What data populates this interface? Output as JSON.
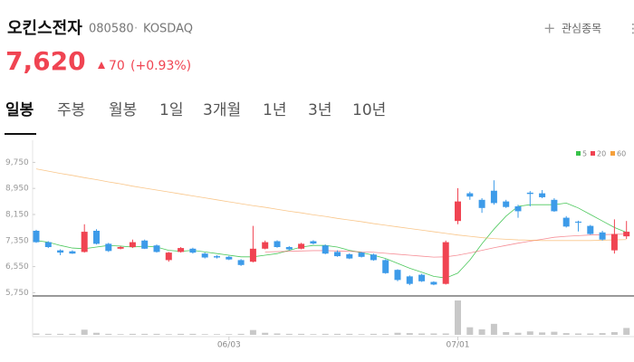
{
  "header": {
    "name": "오킨스전자",
    "code": "080580",
    "market": "KOSDAQ",
    "price": "7,620",
    "change": 70,
    "change_pct": "(+0.93%)",
    "watch": "관심종목"
  },
  "tabs": [
    "일봉",
    "주봉",
    "월봉",
    "1일",
    "3개월",
    "1년",
    "3년",
    "10년"
  ],
  "chart_data": {
    "type": "candlestick",
    "categories": [
      null,
      null,
      null,
      null,
      null,
      null,
      null,
      null,
      null,
      null,
      null,
      null,
      null,
      null,
      null,
      null,
      "06/03",
      null,
      null,
      null,
      null,
      null,
      null,
      null,
      null,
      null,
      null,
      null,
      null,
      null,
      null,
      null,
      null,
      null,
      null,
      "07/01",
      null,
      null,
      null,
      null,
      null,
      null,
      null,
      null,
      null,
      null,
      null,
      null,
      null,
      null
    ],
    "open": [
      7650,
      7300,
      7050,
      7020,
      7000,
      7650,
      7250,
      7100,
      7150,
      7350,
      7200,
      6750,
      7000,
      7100,
      6950,
      6870,
      6850,
      6750,
      6700,
      7100,
      7330,
      7150,
      7100,
      7330,
      7200,
      7000,
      6930,
      6980,
      6920,
      6750,
      6450,
      6250,
      6300,
      6080,
      6020,
      7950,
      8800,
      8600,
      8880,
      8550,
      8400,
      8820,
      8800,
      8600,
      8050,
      7930,
      7800,
      7600,
      7050,
      7480
    ],
    "high": [
      7680,
      7330,
      7080,
      7050,
      7850,
      7700,
      7280,
      7180,
      7380,
      7380,
      7230,
      7000,
      7150,
      7130,
      6980,
      6900,
      6880,
      6780,
      7800,
      7350,
      7360,
      7180,
      7280,
      7360,
      7230,
      7050,
      6960,
      7000,
      6950,
      6780,
      6470,
      6280,
      6330,
      6100,
      7350,
      8960,
      8850,
      8650,
      9200,
      8600,
      8450,
      8870,
      8900,
      8650,
      8100,
      7960,
      7830,
      7650,
      8000,
      7950
    ],
    "low": [
      7280,
      7120,
      6900,
      6940,
      6980,
      7230,
      7000,
      7080,
      7120,
      7090,
      6980,
      6700,
      6980,
      6950,
      6800,
      6800,
      6750,
      6570,
      6680,
      7080,
      7130,
      7050,
      7080,
      7230,
      6930,
      6850,
      6780,
      6830,
      6730,
      6330,
      6100,
      5980,
      6080,
      5980,
      6000,
      7850,
      8600,
      8200,
      8450,
      8350,
      8050,
      8400,
      8650,
      8230,
      7750,
      7630,
      7530,
      7350,
      6950,
      7400
    ],
    "close": [
      7300,
      7150,
      6980,
      6950,
      7620,
      7250,
      7030,
      7150,
      7300,
      7100,
      7000,
      6980,
      7120,
      6980,
      6830,
      6830,
      6770,
      6600,
      7100,
      7300,
      7150,
      7080,
      7250,
      7260,
      6950,
      6870,
      6800,
      6850,
      6750,
      6350,
      6140,
      6020,
      6100,
      6000,
      7300,
      8550,
      8700,
      8350,
      8500,
      8380,
      8250,
      8780,
      8680,
      8250,
      7780,
      7900,
      7550,
      7380,
      7550,
      7620
    ],
    "volume": [
      4,
      3,
      3,
      3,
      15,
      6,
      3,
      2,
      3,
      3,
      3,
      2,
      3,
      3,
      2,
      2,
      2,
      3,
      14,
      6,
      4,
      3,
      3,
      2,
      3,
      3,
      3,
      2,
      3,
      3,
      6,
      5,
      4,
      4,
      4,
      100,
      22,
      16,
      32,
      8,
      6,
      10,
      7,
      9,
      5,
      4,
      4,
      5,
      8,
      20
    ],
    "volume_ylim": [
      0,
      100
    ],
    "up_color": "#f04452",
    "down_color": "#3d9be9",
    "volume_color": "#c8c8c8",
    "series": [
      {
        "name": "5",
        "color": "#38c24a",
        "values": [
          7350,
          7300,
          7200,
          7120,
          7100,
          7150,
          7200,
          7180,
          7150,
          7180,
          7150,
          7050,
          7020,
          7050,
          7000,
          6950,
          6900,
          6850,
          6850,
          6900,
          6950,
          7050,
          7150,
          7200,
          7200,
          7150,
          7050,
          6980,
          6900,
          6800,
          6650,
          6500,
          6380,
          6250,
          6200,
          6350,
          6750,
          7250,
          7700,
          8100,
          8400,
          8450,
          8450,
          8450,
          8500,
          8350,
          8150,
          7950,
          7750,
          7600
        ]
      },
      {
        "name": "20",
        "color": "#f04452",
        "values": [
          null,
          null,
          null,
          null,
          null,
          null,
          null,
          null,
          null,
          null,
          null,
          null,
          null,
          null,
          null,
          null,
          null,
          null,
          null,
          7000,
          7010,
          7020,
          7030,
          7040,
          7040,
          7030,
          7020,
          7000,
          6990,
          6960,
          6930,
          6900,
          6870,
          6840,
          6850,
          6900,
          6970,
          7050,
          7130,
          7200,
          7270,
          7330,
          7390,
          7450,
          7480,
          7500,
          7520,
          7530,
          7540,
          7550
        ]
      },
      {
        "name": "60",
        "color": "#f5a03c",
        "values": [
          9550,
          9480,
          9410,
          9350,
          9280,
          9220,
          9150,
          9090,
          9020,
          8960,
          8900,
          8840,
          8780,
          8720,
          8660,
          8600,
          8540,
          8480,
          8420,
          8370,
          8310,
          8250,
          8200,
          8140,
          8090,
          8030,
          7980,
          7930,
          7870,
          7820,
          7770,
          7720,
          7670,
          7620,
          7570,
          7520,
          7480,
          7440,
          7410,
          7390,
          7370,
          7360,
          7350,
          7350,
          7350,
          7350,
          7350,
          7360,
          7370,
          7380
        ]
      }
    ],
    "ylim": [
      5650,
      10150
    ],
    "yticks": [
      {
        "value": 5750,
        "label": "5,750"
      },
      {
        "value": 6550,
        "label": "6,550"
      },
      {
        "value": 7350,
        "label": "7,350"
      },
      {
        "value": 8150,
        "label": "8,150"
      },
      {
        "value": 8950,
        "label": "8,950"
      },
      {
        "value": 9750,
        "label": "9,750"
      }
    ]
  }
}
